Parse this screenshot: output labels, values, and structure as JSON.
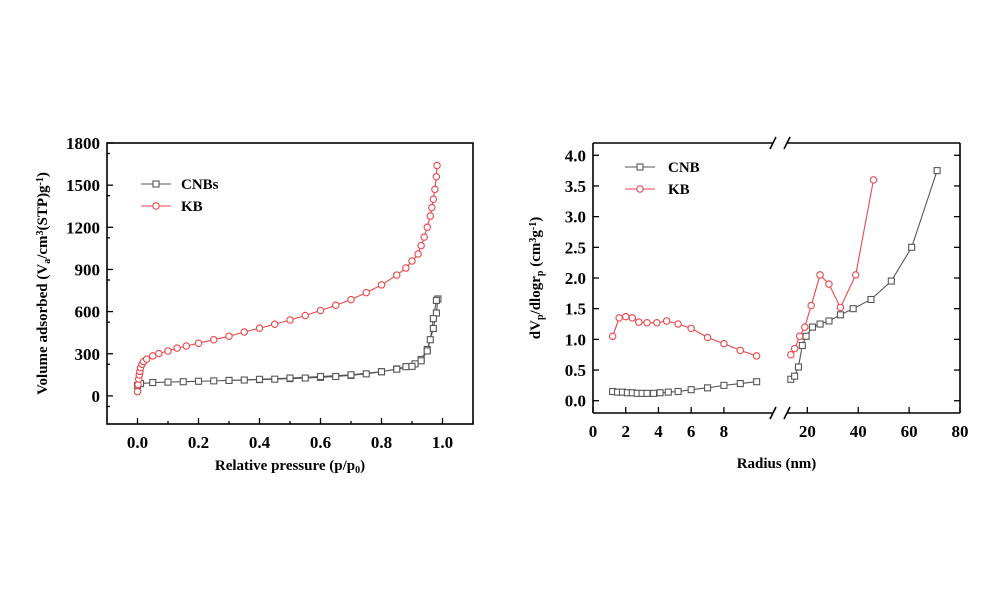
{
  "colors": {
    "cnb": "#555555",
    "kb": "#e8474c",
    "axis": "#000000"
  },
  "chart_data": [
    {
      "type": "line",
      "xlabel": "Relative pressure (p/p",
      "xlabel_sub": "0",
      "xlabel_end": ")",
      "ylabel_parts": [
        "Volume adsorbed (V",
        "a",
        "/cm",
        "3",
        "(STP)g",
        "-1",
        ")"
      ],
      "xlim": [
        -0.1,
        1.1
      ],
      "ylim": [
        -200,
        1800
      ],
      "xticks": [
        "0.0",
        "0.2",
        "0.4",
        "0.6",
        "0.8",
        "1.0"
      ],
      "yticks": [
        "0",
        "300",
        "600",
        "900",
        "1200",
        "1500",
        "1800"
      ],
      "legend_position": "top-left",
      "series": [
        {
          "name": "CNBs",
          "marker": "square",
          "color": "#555555",
          "x": [
            0.0,
            0.01,
            0.05,
            0.1,
            0.15,
            0.2,
            0.25,
            0.3,
            0.35,
            0.4,
            0.45,
            0.5,
            0.55,
            0.6,
            0.65,
            0.7,
            0.75,
            0.8,
            0.85,
            0.88,
            0.91,
            0.93,
            0.95,
            0.97,
            0.98,
            0.985,
            0.98,
            0.97,
            0.96,
            0.95,
            0.93,
            0.9,
            0.85,
            0.8,
            0.7,
            0.6,
            0.5,
            0.4,
            0.3
          ],
          "y": [
            75,
            88,
            95,
            98,
            101,
            104,
            107,
            110,
            113,
            116,
            119,
            123,
            127,
            132,
            138,
            146,
            157,
            172,
            192,
            208,
            228,
            260,
            330,
            480,
            590,
            690,
            680,
            550,
            400,
            320,
            250,
            210,
            190,
            172,
            150,
            138,
            127,
            118,
            110
          ]
        },
        {
          "name": "KB",
          "marker": "circle",
          "color": "#e8474c",
          "x": [
            0.0,
            0.002,
            0.004,
            0.006,
            0.008,
            0.01,
            0.015,
            0.02,
            0.03,
            0.05,
            0.07,
            0.1,
            0.13,
            0.16,
            0.2,
            0.25,
            0.3,
            0.35,
            0.4,
            0.45,
            0.5,
            0.55,
            0.6,
            0.65,
            0.7,
            0.75,
            0.8,
            0.85,
            0.88,
            0.9,
            0.92,
            0.93,
            0.94,
            0.95,
            0.96,
            0.965,
            0.97,
            0.975,
            0.98,
            0.982
          ],
          "y": [
            30,
            80,
            120,
            150,
            175,
            200,
            225,
            245,
            262,
            285,
            302,
            320,
            340,
            355,
            375,
            400,
            425,
            455,
            482,
            510,
            540,
            572,
            608,
            645,
            685,
            735,
            790,
            860,
            910,
            960,
            1010,
            1070,
            1130,
            1200,
            1280,
            1340,
            1400,
            1470,
            1560,
            1640
          ]
        }
      ]
    },
    {
      "type": "line",
      "xlabel": "Radius (nm)",
      "ylabel_parts": [
        "dV",
        "p",
        "/dlogr",
        "p",
        " (cm",
        "3",
        "g",
        "-1",
        ")"
      ],
      "xlim_left": [
        0,
        11
      ],
      "xlim_right": [
        12,
        80
      ],
      "ylim": [
        -0.2,
        4.2
      ],
      "xticks_left": [
        "0",
        "2",
        "4",
        "6",
        "8"
      ],
      "xticks_right": [
        "20",
        "40",
        "60",
        "80"
      ],
      "yticks": [
        "0.0",
        "0.5",
        "1.0",
        "1.5",
        "2.0",
        "2.5",
        "3.0",
        "3.5",
        "4.0"
      ],
      "axis_break": true,
      "legend_position": "top-left",
      "series": [
        {
          "name": "CNB",
          "marker": "square",
          "color": "#555555",
          "x": [
            1.2,
            1.5,
            1.8,
            2.1,
            2.4,
            2.7,
            3.0,
            3.3,
            3.7,
            4.1,
            4.6,
            5.2,
            6.0,
            7.0,
            8.0,
            9.0,
            10.0,
            13.5,
            15.0,
            16.5,
            18.0,
            19.5,
            22.0,
            25.0,
            28.5,
            33.0,
            38.0,
            45.0,
            53.0,
            61.0,
            71.0
          ],
          "y": [
            0.15,
            0.14,
            0.14,
            0.13,
            0.13,
            0.12,
            0.12,
            0.12,
            0.12,
            0.13,
            0.14,
            0.15,
            0.18,
            0.21,
            0.25,
            0.28,
            0.31,
            0.35,
            0.4,
            0.55,
            0.9,
            1.05,
            1.2,
            1.25,
            1.3,
            1.4,
            1.5,
            1.65,
            1.95,
            2.5,
            3.75
          ]
        },
        {
          "name": "KB",
          "marker": "circle",
          "color": "#e8474c",
          "x": [
            1.2,
            1.6,
            2.0,
            2.4,
            2.8,
            3.3,
            3.9,
            4.5,
            5.2,
            6.0,
            7.0,
            8.0,
            9.0,
            10.0,
            13.5,
            15.0,
            17.0,
            19.0,
            21.5,
            25.0,
            28.5,
            33.0,
            39.0,
            46.0
          ],
          "y": [
            1.05,
            1.35,
            1.37,
            1.35,
            1.28,
            1.27,
            1.27,
            1.3,
            1.25,
            1.18,
            1.03,
            0.93,
            0.82,
            0.73,
            0.75,
            0.85,
            1.05,
            1.2,
            1.55,
            2.05,
            1.9,
            1.52,
            2.05,
            3.6
          ]
        }
      ]
    }
  ]
}
